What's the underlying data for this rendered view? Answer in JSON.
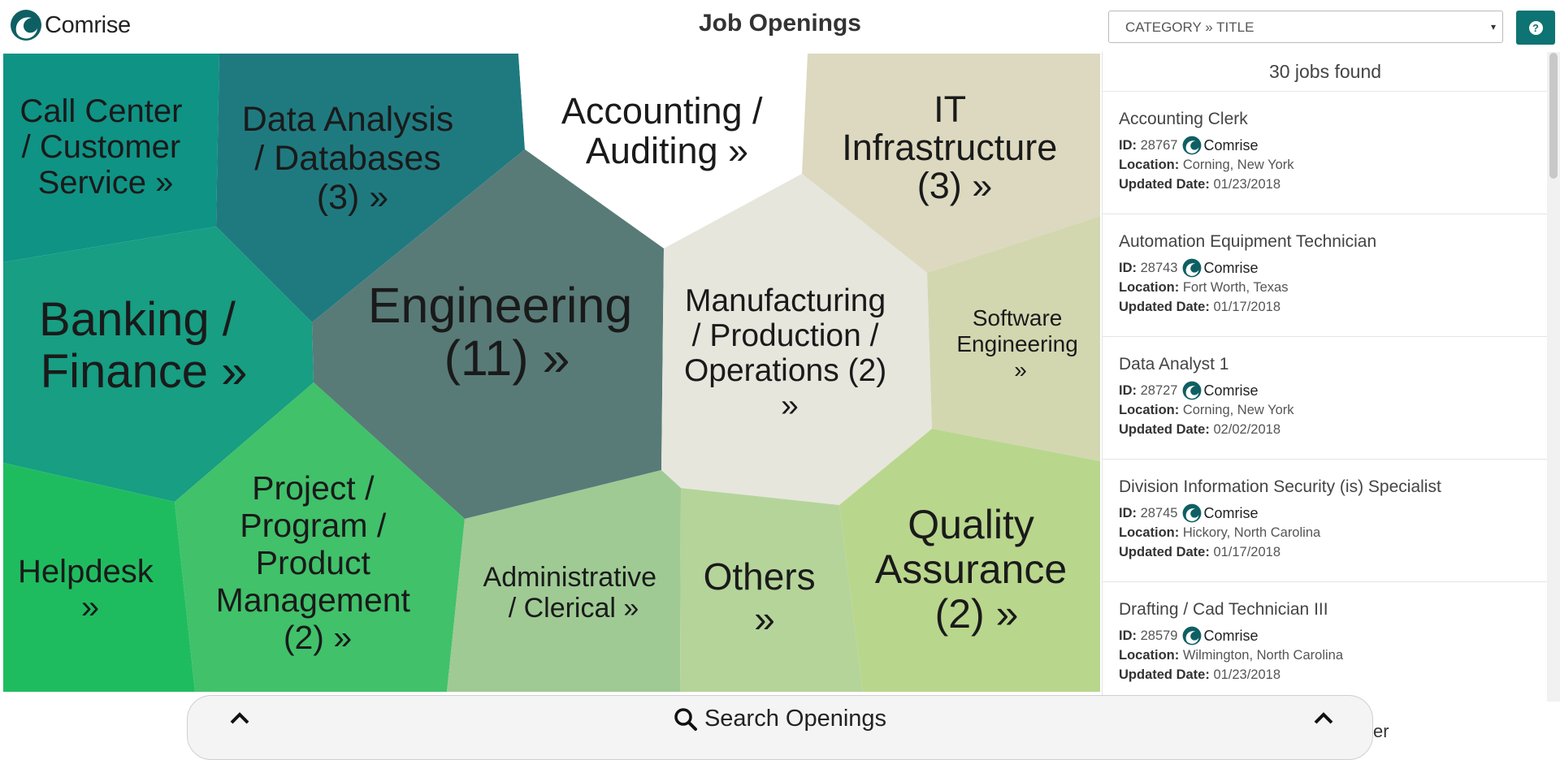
{
  "brand": {
    "name": "Comrise",
    "color": "#0e5f63",
    "icon": "wave-logo-icon"
  },
  "header": {
    "title": "Job Openings"
  },
  "sort": {
    "value": "CATEGORY » TITLE"
  },
  "help": {
    "icon": "question-circle-icon",
    "color": "#0e7373"
  },
  "categories": [
    {
      "lines": [
        "Call Center",
        "/ Customer",
        "Service »"
      ],
      "color": "#0f9385"
    },
    {
      "lines": [
        "Data Analysis",
        "/ Databases",
        "(3) »"
      ],
      "color": "#1f7a80"
    },
    {
      "lines": [
        "Accounting /",
        "Auditing »"
      ],
      "color": "#ffffff"
    },
    {
      "lines": [
        "IT",
        "Infrastructure",
        "(3) »"
      ],
      "color": "#ddd9c0"
    },
    {
      "lines": [
        "Banking /",
        "Finance »"
      ],
      "color": "#179e83"
    },
    {
      "lines": [
        "Engineering",
        "(11) »"
      ],
      "color": "#587b78"
    },
    {
      "lines": [
        "Manufacturing",
        "/ Production /",
        "Operations (2)",
        "»"
      ],
      "color": "#e6e6dd"
    },
    {
      "lines": [
        "Software",
        "Engineering",
        "»"
      ],
      "color": "#d2d7b0"
    },
    {
      "lines": [
        "Helpdesk",
        "»"
      ],
      "color": "#1fbc5f"
    },
    {
      "lines": [
        "Project /",
        "Program /",
        "Product",
        "Management",
        "(2) »"
      ],
      "color": "#41c16a"
    },
    {
      "lines": [
        "Administrative",
        "/ Clerical »"
      ],
      "color": "#9fca94"
    },
    {
      "lines": [
        "Others",
        "»"
      ],
      "color": "#b5d49a"
    },
    {
      "lines": [
        "Quality",
        "Assurance",
        "(2) »"
      ],
      "color": "#b9d68d"
    }
  ],
  "results": {
    "count_text": "30 jobs found",
    "labels": {
      "id": "ID:",
      "location": "Location:",
      "updated": "Updated Date:"
    },
    "jobs": [
      {
        "title": "Accounting Clerk",
        "id": "28767",
        "company": "Comrise",
        "location": "Corning, New York",
        "updated": "01/23/2018"
      },
      {
        "title": "Automation Equipment Technician",
        "id": "28743",
        "company": "Comrise",
        "location": "Fort Worth, Texas",
        "updated": "01/17/2018"
      },
      {
        "title": "Data Analyst 1",
        "id": "28727",
        "company": "Comrise",
        "location": "Corning, New York",
        "updated": "02/02/2018"
      },
      {
        "title": "Division Information Security (is) Specialist",
        "id": "28745",
        "company": "Comrise",
        "location": "Hickory, North Carolina",
        "updated": "01/17/2018"
      },
      {
        "title": "Drafting / Cad Technician III",
        "id": "28579",
        "company": "Comrise",
        "location": "Wilmington, North Carolina",
        "updated": "01/23/2018"
      }
    ]
  },
  "search": {
    "label": "Search Openings",
    "icon": "search-icon",
    "expand_icon": "chevron-up-icon"
  },
  "footer_peek": "er"
}
